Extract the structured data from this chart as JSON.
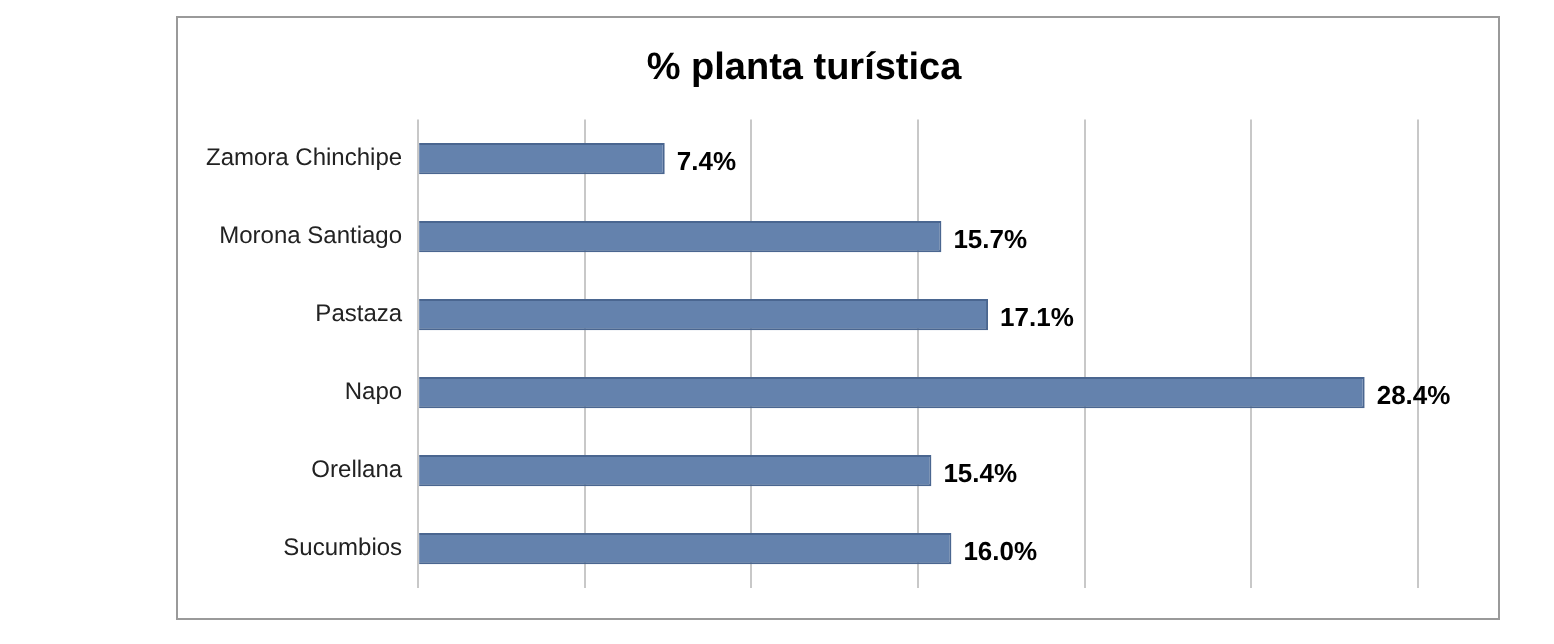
{
  "chart_data": {
    "type": "bar",
    "orientation": "horizontal",
    "title": "% planta turística",
    "categories": [
      "Zamora Chinchipe",
      "Morona Santiago",
      "Pastaza",
      "Napo",
      "Orellana",
      "Sucumbios"
    ],
    "values": [
      7.4,
      15.7,
      17.1,
      28.4,
      15.4,
      16.0
    ],
    "value_labels": [
      "7.4%",
      "15.7%",
      "17.1%",
      "28.4%",
      "15.4%",
      "16.0%"
    ],
    "color": "#6482ad",
    "xlim": [
      0,
      30
    ],
    "xticks": [
      {
        "value": 0,
        "label": null
      },
      {
        "value": 5,
        "label": null
      },
      {
        "value": 10,
        "label": null
      },
      {
        "value": 15,
        "label": null
      },
      {
        "value": 20,
        "label": null
      },
      {
        "value": 25,
        "label": null
      },
      {
        "value": 30,
        "label": null
      }
    ],
    "grid": "x",
    "tick_labels": "y",
    "legend": false
  }
}
